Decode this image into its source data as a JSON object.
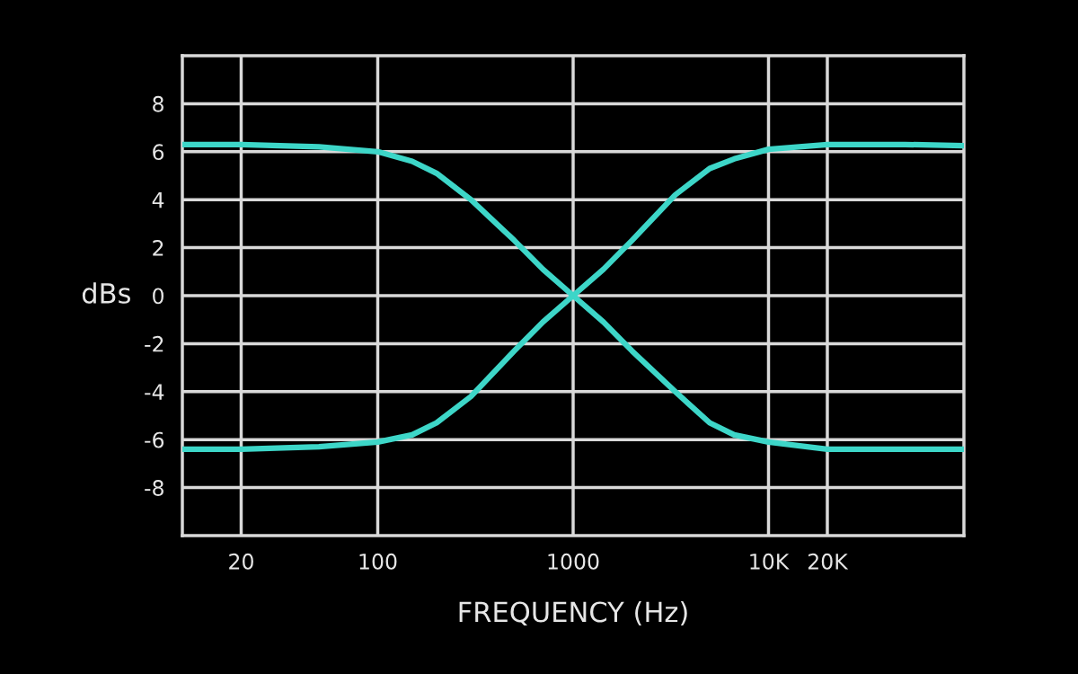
{
  "chart_data": {
    "type": "line",
    "xlabel": "FREQUENCY (Hz)",
    "ylabel": "dBs",
    "log": "x",
    "xlim": [
      10,
      100000
    ],
    "ylim": [
      -10,
      10
    ],
    "xticks": [
      20,
      100,
      1000,
      {
        "value": 10000,
        "label": "10K"
      },
      {
        "value": 20000,
        "label": "20K"
      }
    ],
    "yticks": [
      -8,
      -6,
      -4,
      -2,
      0,
      2,
      4,
      6,
      8
    ],
    "grid": true,
    "legend": false,
    "marker": "none",
    "line_style": "solid",
    "series": [
      {
        "color": "#3dd6c8",
        "x": [
          10,
          20,
          50,
          100,
          150,
          200,
          300,
          500,
          700,
          1000,
          1430,
          2000,
          3330,
          5000,
          6670,
          10000,
          20000,
          50000,
          100000
        ],
        "values": [
          -6.4,
          -6.4,
          -6.3,
          -6.1,
          -5.8,
          -5.3,
          -4.2,
          -2.3,
          -1.1,
          0,
          1.1,
          2.3,
          4.2,
          5.3,
          5.7,
          6.1,
          6.3,
          6.3,
          6.25
        ]
      },
      {
        "color": "#3dd6c8",
        "x": [
          10,
          20,
          50,
          100,
          150,
          200,
          300,
          500,
          700,
          1000,
          1430,
          2000,
          3330,
          5000,
          6670,
          10000,
          20000,
          50000,
          100000
        ],
        "values": [
          6.3,
          6.3,
          6.2,
          6.0,
          5.6,
          5.1,
          4.0,
          2.3,
          1.1,
          0,
          -1.1,
          -2.3,
          -4.0,
          -5.3,
          -5.8,
          -6.1,
          -6.4,
          -6.4,
          -6.4
        ]
      }
    ]
  }
}
